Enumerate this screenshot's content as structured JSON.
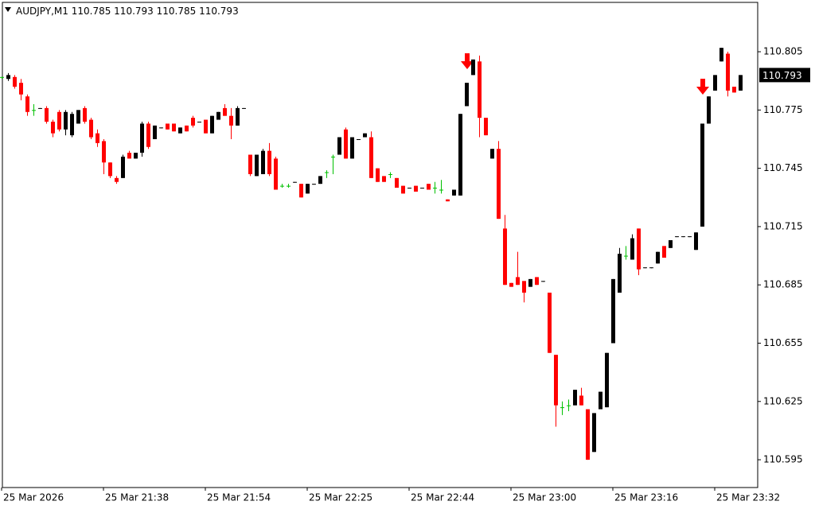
{
  "chart_data": {
    "type": "candlestick",
    "title": "AUDJPY,M1",
    "categories": [
      "25 Mar 2026",
      null,
      null,
      null,
      null,
      null,
      null,
      null,
      null,
      null,
      null,
      null,
      null,
      null,
      null,
      null,
      "25 Mar 21:38",
      null,
      null,
      null,
      null,
      null,
      null,
      null,
      null,
      null,
      null,
      null,
      null,
      null,
      null,
      null,
      "25 Mar 21:54",
      null,
      null,
      null,
      null,
      null,
      null,
      null,
      null,
      null,
      null,
      null,
      null,
      null,
      null,
      null,
      "25 Mar 22:25",
      null,
      null,
      null,
      null,
      null,
      null,
      null,
      null,
      null,
      null,
      null,
      null,
      null,
      null,
      null,
      "25 Mar 22:44",
      null,
      null,
      null,
      null,
      null,
      null,
      null,
      null,
      null,
      null,
      null,
      null,
      null,
      null,
      null,
      "25 Mar 23:00",
      null,
      null,
      null,
      null,
      null,
      null,
      null,
      null,
      null,
      null,
      null,
      null,
      null,
      null,
      null,
      "25 Mar 23:16",
      null,
      null,
      null,
      null,
      null,
      null,
      null,
      null,
      null,
      null,
      null,
      null,
      null,
      null,
      null,
      "25 Mar 23:32",
      null,
      null,
      null,
      null
    ],
    "open": [
      110.792,
      110.791,
      110.792,
      110.789,
      110.782,
      110.775,
      110.776,
      110.776,
      110.769,
      110.774,
      110.765,
      110.762,
      110.768,
      110.776,
      110.77,
      110.763,
      110.759,
      110.748,
      110.74,
      110.74,
      110.753,
      110.75,
      110.753,
      110.768,
      110.76,
      110.766,
      110.768,
      110.768,
      110.763,
      110.767,
      110.771,
      110.769,
      110.77,
      110.763,
      110.77,
      110.776,
      110.772,
      110.767,
      110.776,
      110.752,
      110.741,
      110.742,
      110.754,
      110.75,
      110.736,
      110.736,
      110.738,
      110.737,
      110.732,
      110.737,
      110.737,
      110.743,
      110.751,
      110.752,
      110.765,
      110.75,
      110.76,
      110.761,
      110.761,
      110.745,
      110.741,
      110.742,
      110.74,
      110.736,
      110.735,
      110.736,
      110.735,
      110.737,
      110.735,
      110.734,
      110.729,
      110.731,
      110.731,
      110.777,
      110.793,
      110.8,
      110.771,
      110.75,
      110.755,
      110.714,
      110.686,
      110.689,
      110.687,
      110.684,
      110.689,
      110.687,
      110.681,
      110.649,
      110.622,
      110.623,
      110.623,
      110.628,
      110.621,
      110.599,
      110.621,
      110.622,
      110.655,
      110.681,
      110.7,
      110.698,
      110.714,
      110.694,
      110.694,
      110.696,
      110.705,
      110.704,
      110.71,
      110.71,
      110.71,
      110.703,
      110.715,
      110.768,
      110.785,
      110.8,
      110.804,
      110.787,
      110.785
    ],
    "high": [
      110.792,
      110.794,
      110.793,
      110.791,
      110.783,
      110.778,
      110.776,
      110.777,
      110.77,
      110.775,
      110.775,
      110.774,
      110.775,
      110.777,
      110.771,
      110.765,
      110.76,
      110.748,
      110.741,
      110.752,
      110.754,
      110.753,
      110.769,
      110.769,
      110.767,
      110.766,
      110.768,
      110.768,
      110.766,
      110.767,
      110.772,
      110.769,
      110.77,
      110.772,
      110.774,
      110.778,
      110.776,
      110.777,
      110.776,
      110.752,
      110.752,
      110.755,
      110.758,
      110.751,
      110.737,
      110.737,
      110.738,
      110.737,
      110.737,
      110.737,
      110.741,
      110.744,
      110.752,
      110.761,
      110.766,
      110.761,
      110.76,
      110.763,
      110.764,
      110.745,
      110.741,
      110.743,
      110.74,
      110.736,
      110.735,
      110.736,
      110.735,
      110.737,
      110.738,
      110.739,
      110.729,
      110.734,
      110.773,
      110.789,
      110.801,
      110.803,
      110.771,
      110.755,
      110.759,
      110.721,
      110.686,
      110.702,
      110.687,
      110.688,
      110.689,
      110.687,
      110.681,
      110.649,
      110.625,
      110.626,
      110.631,
      110.632,
      110.621,
      110.619,
      110.63,
      110.65,
      110.688,
      110.704,
      110.705,
      110.711,
      110.714,
      110.694,
      110.694,
      110.702,
      110.705,
      110.708,
      110.71,
      110.71,
      110.71,
      110.712,
      110.768,
      110.782,
      110.793,
      110.807,
      110.805,
      110.787,
      110.793
    ],
    "low": [
      110.791,
      110.79,
      110.786,
      110.78,
      110.772,
      110.772,
      110.776,
      110.768,
      110.761,
      110.764,
      110.762,
      110.761,
      110.768,
      110.768,
      110.76,
      110.756,
      110.742,
      110.74,
      110.737,
      110.74,
      110.75,
      110.75,
      110.751,
      110.755,
      110.76,
      110.766,
      110.765,
      110.764,
      110.763,
      110.764,
      110.766,
      110.769,
      110.763,
      110.763,
      110.77,
      110.772,
      110.76,
      110.767,
      110.776,
      110.741,
      110.741,
      110.742,
      110.741,
      110.734,
      110.735,
      110.735,
      110.738,
      110.73,
      110.732,
      110.737,
      110.737,
      110.74,
      110.742,
      110.752,
      110.75,
      110.75,
      110.76,
      110.761,
      110.74,
      110.738,
      110.738,
      110.74,
      110.735,
      110.732,
      110.735,
      110.733,
      110.735,
      110.734,
      110.732,
      110.732,
      110.728,
      110.731,
      110.731,
      110.777,
      110.793,
      110.761,
      110.762,
      110.75,
      110.719,
      110.685,
      110.684,
      110.685,
      110.676,
      110.684,
      110.685,
      110.687,
      110.65,
      110.612,
      110.618,
      110.62,
      110.623,
      110.623,
      110.595,
      110.599,
      110.621,
      110.622,
      110.655,
      110.681,
      110.698,
      110.698,
      110.69,
      110.694,
      110.694,
      110.696,
      110.699,
      110.704,
      110.71,
      110.71,
      110.71,
      110.703,
      110.715,
      110.768,
      110.785,
      110.8,
      110.782,
      110.784,
      110.785
    ],
    "close": [
      110.792,
      110.793,
      110.787,
      110.783,
      110.774,
      110.775,
      110.776,
      110.769,
      110.763,
      110.765,
      110.774,
      110.773,
      110.775,
      110.769,
      110.761,
      110.758,
      110.748,
      110.741,
      110.738,
      110.751,
      110.75,
      110.753,
      110.768,
      110.756,
      110.767,
      110.766,
      110.765,
      110.764,
      110.766,
      110.764,
      110.767,
      110.769,
      110.763,
      110.772,
      110.774,
      110.772,
      110.767,
      110.776,
      110.776,
      110.742,
      110.752,
      110.754,
      110.742,
      110.734,
      110.736,
      110.736,
      110.738,
      110.73,
      110.737,
      110.737,
      110.741,
      110.743,
      110.751,
      110.761,
      110.75,
      110.761,
      110.76,
      110.763,
      110.74,
      110.738,
      110.738,
      110.742,
      110.735,
      110.732,
      110.735,
      110.733,
      110.735,
      110.734,
      110.735,
      110.734,
      110.728,
      110.734,
      110.773,
      110.789,
      110.801,
      110.771,
      110.762,
      110.755,
      110.719,
      110.685,
      110.684,
      110.685,
      110.681,
      110.688,
      110.685,
      110.687,
      110.65,
      110.623,
      110.622,
      110.623,
      110.631,
      110.623,
      110.595,
      110.619,
      110.63,
      110.65,
      110.688,
      110.701,
      110.7,
      110.709,
      110.693,
      110.694,
      110.694,
      110.702,
      110.699,
      110.708,
      110.71,
      110.71,
      110.71,
      110.712,
      110.768,
      110.782,
      110.793,
      110.807,
      110.785,
      110.784,
      110.793
    ],
    "ylim": [
      110.5807,
      110.8304
    ],
    "yticks": [
      110.595,
      110.625,
      110.655,
      110.685,
      110.715,
      110.745,
      110.775,
      110.805
    ],
    "bull_color": "#000000",
    "bear_color": "#ff0000",
    "doji_color": "#00c000"
  }
}
